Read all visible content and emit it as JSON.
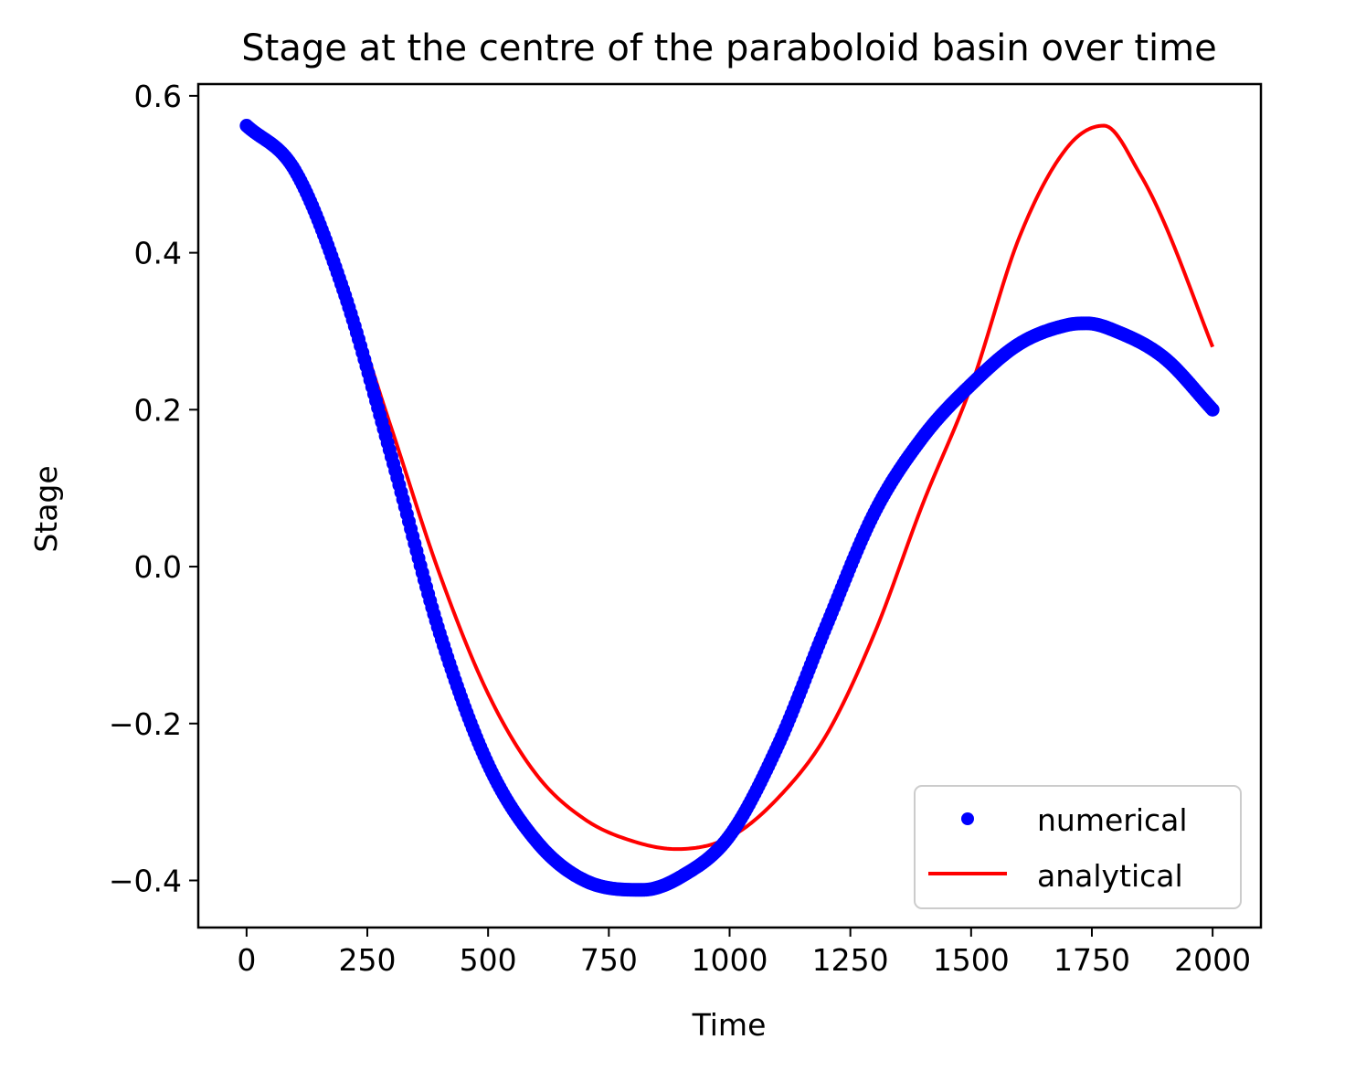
{
  "chart_data": {
    "type": "line",
    "title": "Stage at the centre of the paraboloid basin over time",
    "xlabel": "Time",
    "ylabel": "Stage",
    "xlim": [
      -100,
      2100
    ],
    "ylim": [
      -0.46,
      0.615
    ],
    "x_ticks": [
      0,
      250,
      500,
      750,
      1000,
      1250,
      1500,
      1750,
      2000
    ],
    "x_tick_labels": [
      "0",
      "250",
      "500",
      "750",
      "1000",
      "1250",
      "1500",
      "1750",
      "2000"
    ],
    "y_ticks": [
      0.6,
      0.4,
      0.2,
      0.0,
      -0.2,
      -0.4
    ],
    "y_tick_labels": [
      "0.6",
      "0.4",
      "0.2",
      "0.0",
      "−0.2",
      "−0.4"
    ],
    "grid": false,
    "legend_position": "lower right",
    "series": [
      {
        "name": "numerical",
        "style": "points",
        "color": "#0000ff",
        "x": [
          0,
          100,
          200,
          300,
          400,
          500,
          600,
          700,
          820,
          900,
          1000,
          1100,
          1200,
          1300,
          1400,
          1500,
          1600,
          1700,
          1740,
          1800,
          1900,
          2000
        ],
        "y": [
          0.562,
          0.505,
          0.353,
          0.14,
          -0.085,
          -0.252,
          -0.35,
          -0.4,
          -0.412,
          -0.395,
          -0.343,
          -0.228,
          -0.076,
          0.069,
          0.165,
          0.232,
          0.284,
          0.308,
          0.31,
          0.3,
          0.266,
          0.2
        ]
      },
      {
        "name": "analytical",
        "style": "line",
        "color": "#ff0000",
        "x": [
          0,
          100,
          200,
          300,
          400,
          500,
          600,
          700,
          800,
          890,
          1000,
          1100,
          1200,
          1300,
          1400,
          1500,
          1600,
          1700,
          1775,
          1850,
          1900,
          2000
        ],
        "y": [
          0.562,
          0.495,
          0.359,
          0.176,
          -0.01,
          -0.162,
          -0.265,
          -0.322,
          -0.35,
          -0.36,
          -0.345,
          -0.295,
          -0.215,
          -0.085,
          0.08,
          0.23,
          0.42,
          0.535,
          0.562,
          0.5,
          0.438,
          0.28
        ]
      }
    ]
  }
}
